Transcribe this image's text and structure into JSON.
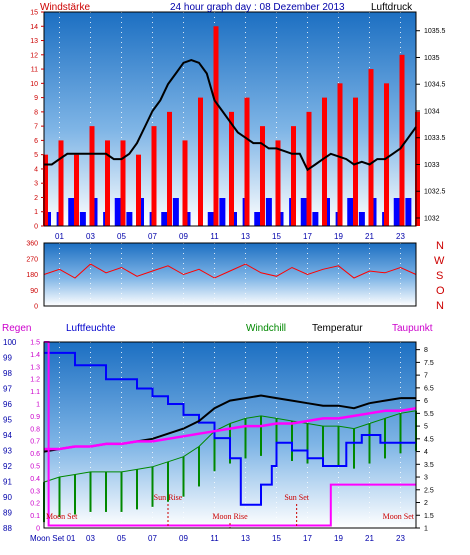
{
  "header": {
    "left_label": "Windstärke",
    "title": "24 hour graph day : 08 Dezember 2013",
    "right_label": "Luftdruck"
  },
  "colors": {
    "wind": "#ff0000",
    "pressure": "#000000",
    "direction": "#ff0000",
    "rain": "#ff00ff",
    "humidity": "#0000ff",
    "windchill": "#008800",
    "temperature": "#000000",
    "dewpoint": "#ff00ff",
    "blue_bars": "#0000ff"
  },
  "chart_data": [
    {
      "type": "line",
      "name": "wind-pressure",
      "x_ticks": [
        "01",
        "03",
        "05",
        "07",
        "09",
        "11",
        "13",
        "15",
        "17",
        "19",
        "21",
        "23"
      ],
      "xlim": [
        0,
        24
      ],
      "left_axis": {
        "label": "Windstärke",
        "ticks": [
          0,
          1,
          2,
          3,
          4,
          5,
          6,
          7,
          8,
          9,
          10,
          11,
          12,
          13,
          14,
          15
        ],
        "ylim": [
          0,
          15
        ]
      },
      "right_axis": {
        "label": "Luftdruck",
        "ticks": [
          1032,
          1032.5,
          1033,
          1033.5,
          1034,
          1034.5,
          1035,
          1035.5
        ],
        "ylim": [
          1031.85,
          1035.85
        ]
      },
      "series": [
        {
          "kind": "wind_bars",
          "x": [
            0,
            1,
            2,
            3,
            4,
            5,
            6,
            7,
            8,
            9,
            10,
            11,
            12,
            13,
            14,
            15,
            16,
            17,
            18,
            19,
            20,
            21,
            22,
            23,
            24
          ],
          "values": [
            5,
            6,
            5,
            7,
            6,
            6,
            5,
            7,
            8,
            6,
            9,
            14,
            8,
            9,
            7,
            6,
            7,
            8,
            9,
            10,
            9,
            11,
            10,
            12,
            8
          ]
        },
        {
          "kind": "pressure_line",
          "x": [
            0,
            0.5,
            1,
            1.5,
            2,
            2.5,
            3,
            3.5,
            4,
            4.5,
            5,
            5.5,
            6,
            6.5,
            7,
            7.5,
            8,
            8.5,
            9,
            9.5,
            10,
            10.5,
            11,
            11.5,
            12,
            12.5,
            13,
            13.5,
            14,
            14.5,
            15,
            15.5,
            16,
            16.5,
            17,
            17.5,
            18,
            18.5,
            19,
            19.5,
            20,
            20.5,
            21,
            21.5,
            22,
            22.5,
            23,
            23.5,
            24
          ],
          "values": [
            1033.0,
            1033.0,
            1033.1,
            1033.2,
            1033.2,
            1033.2,
            1033.2,
            1033.2,
            1033.2,
            1033.1,
            1033.1,
            1033.2,
            1033.4,
            1033.7,
            1034.0,
            1034.2,
            1034.5,
            1034.7,
            1034.9,
            1034.95,
            1034.9,
            1034.7,
            1034.2,
            1034.0,
            1033.8,
            1033.6,
            1033.5,
            1033.4,
            1033.4,
            1033.3,
            1033.3,
            1033.25,
            1033.2,
            1033.2,
            1032.9,
            1033.0,
            1033.1,
            1033.2,
            1033.15,
            1033.1,
            1033.0,
            1033.05,
            1033.0,
            1033.1,
            1033.1,
            1033.2,
            1033.3,
            1033.5,
            1033.7
          ]
        },
        {
          "kind": "blue_bars",
          "x": [
            0,
            0.75,
            1.5,
            2.25,
            3,
            3.75,
            4.5,
            5.25,
            6,
            6.75,
            7.5,
            8.25,
            9,
            9.75,
            10.5,
            11.25,
            12,
            12.75,
            13.5,
            14.25,
            15,
            15.75,
            16.5,
            17.25,
            18,
            18.75,
            19.5,
            20.25,
            21,
            21.75,
            22.5,
            23.25
          ],
          "values": [
            1,
            1,
            2,
            1,
            2,
            1,
            2,
            1,
            2,
            1,
            1,
            2,
            1,
            0,
            1,
            2,
            1,
            2,
            1,
            2,
            1,
            2,
            2,
            1,
            2,
            1,
            2,
            1,
            2,
            1,
            2,
            2
          ]
        }
      ]
    },
    {
      "type": "line",
      "name": "wind-direction",
      "left_axis": {
        "ticks": [
          0,
          90,
          180,
          270,
          360
        ],
        "ylim": [
          0,
          360
        ]
      },
      "right_labels": [
        "N",
        "W",
        "S",
        "O",
        "N"
      ],
      "series": [
        {
          "kind": "direction",
          "x": [
            0,
            1,
            2,
            3,
            4,
            5,
            6,
            7,
            8,
            9,
            10,
            11,
            12,
            13,
            14,
            15,
            16,
            17,
            18,
            19,
            20,
            21,
            22,
            23,
            24
          ],
          "values": [
            180,
            210,
            160,
            240,
            190,
            220,
            170,
            200,
            230,
            180,
            210,
            160,
            200,
            240,
            190,
            170,
            220,
            180,
            210,
            230,
            160,
            200,
            190,
            220,
            180
          ]
        }
      ]
    },
    {
      "type": "line",
      "name": "rain-humidity-temperature",
      "legend": [
        "Regen",
        "Luftfeuchte",
        "Windchill",
        "Temperatur",
        "Taupunkt"
      ],
      "x_ticks": [
        "01",
        "03",
        "05",
        "07",
        "09",
        "11",
        "13",
        "15",
        "17",
        "19",
        "21",
        "23"
      ],
      "xlim": [
        0,
        24
      ],
      "humidity_axis": {
        "ticks": [
          88,
          89,
          90,
          91,
          92,
          93,
          94,
          95,
          96,
          97,
          98,
          99,
          100
        ],
        "ylim": [
          88,
          100
        ]
      },
      "rain_axis": {
        "ticks": [
          "0",
          "0.1",
          "0.2",
          "0.3",
          "0.4",
          "0.5",
          "0.6",
          "0.7",
          "0.8",
          "0.9",
          "1",
          "1.1",
          "1.2",
          "1.3",
          "1.4",
          "1.5"
        ],
        "ylim": [
          0,
          1.5
        ]
      },
      "temperature_axis": {
        "ticks": [
          "1",
          "1.5",
          "2",
          "2.5",
          "3",
          "3.5",
          "4",
          "4.5",
          "5",
          "5.5",
          "6",
          "6.5",
          "7",
          "7.5",
          "8"
        ],
        "ylim": [
          1,
          8.3
        ]
      },
      "annotations": [
        {
          "text": "Moon Set",
          "x": 0.2
        },
        {
          "text": "Sun Rise",
          "x": 8.0
        },
        {
          "text": "Moon Rise",
          "x": 12.0
        },
        {
          "text": "Sun Set",
          "x": 16.3
        },
        {
          "text": "Moon Set",
          "x": 23.8
        }
      ],
      "x_first_label": "Moon Set 01",
      "series": [
        {
          "name": "Regen",
          "x": [
            0,
            0.3,
            0.3,
            18.5,
            18.5,
            24
          ],
          "values": [
            1.5,
            1.5,
            0.02,
            0.02,
            0.35,
            0.35
          ]
        },
        {
          "name": "Luftfeuchte",
          "x": [
            0,
            2,
            2,
            4,
            4,
            6,
            6,
            7,
            7,
            8,
            8,
            9,
            9,
            10,
            10,
            11,
            11,
            12,
            12,
            12.7,
            12.7,
            14,
            14,
            14.7,
            14.7,
            15,
            15,
            16,
            16,
            17,
            17,
            18,
            18,
            19.5,
            19.5,
            20.5,
            20.5,
            21.7,
            21.7,
            22.5,
            22.5,
            24
          ],
          "values": [
            99.3,
            99.3,
            98.5,
            98.5,
            97.6,
            97.6,
            97.0,
            97.0,
            96.5,
            96.5,
            96.0,
            96.0,
            95.3,
            95.3,
            94.8,
            94.8,
            93.8,
            93.8,
            92.5,
            92.5,
            89.5,
            89.5,
            90.8,
            90.8,
            92,
            92,
            93.5,
            93.5,
            93,
            93,
            92.5,
            92.5,
            92,
            92,
            93.5,
            93.5,
            94,
            94,
            93.5,
            93.5,
            93.5,
            93.5
          ]
        },
        {
          "name": "Windchill",
          "x": [
            0,
            1,
            2,
            3,
            4,
            5,
            6,
            7,
            8,
            9,
            10,
            11,
            12,
            13,
            14,
            15,
            16,
            17,
            18,
            19,
            20,
            21,
            22,
            23,
            24
          ],
          "values": [
            2.8,
            3.0,
            3.1,
            3.2,
            3.2,
            3.2,
            3.3,
            3.4,
            3.6,
            3.8,
            4.2,
            4.8,
            5.1,
            5.3,
            5.4,
            5.3,
            5.2,
            5.1,
            5.0,
            5.0,
            4.9,
            5.1,
            5.3,
            5.5,
            5.6
          ]
        },
        {
          "name": "Temperatur",
          "x": [
            0,
            1,
            2,
            3,
            4,
            5,
            6,
            7,
            8,
            9,
            10,
            11,
            12,
            13,
            14,
            15,
            16,
            17,
            18,
            19,
            20,
            21,
            22,
            23,
            24
          ],
          "values": [
            4.0,
            4.1,
            4.2,
            4.2,
            4.3,
            4.3,
            4.4,
            4.5,
            4.7,
            4.9,
            5.2,
            5.7,
            6.0,
            6.1,
            6.2,
            6.1,
            6.0,
            5.9,
            5.8,
            5.8,
            5.7,
            5.9,
            6.0,
            6.1,
            6.1
          ]
        },
        {
          "name": "Taupunkt",
          "x": [
            0,
            1,
            2,
            3,
            4,
            5,
            6,
            7,
            8,
            9,
            10,
            11,
            12,
            13,
            14,
            15,
            16,
            17,
            18,
            19,
            20,
            21,
            22,
            23,
            24
          ],
          "values": [
            4.1,
            4.1,
            4.2,
            4.2,
            4.3,
            4.3,
            4.4,
            4.4,
            4.5,
            4.6,
            4.7,
            4.8,
            4.9,
            5.0,
            5.0,
            5.1,
            5.1,
            5.2,
            5.3,
            5.3,
            5.4,
            5.5,
            5.6,
            5.6,
            5.7
          ]
        }
      ]
    }
  ]
}
